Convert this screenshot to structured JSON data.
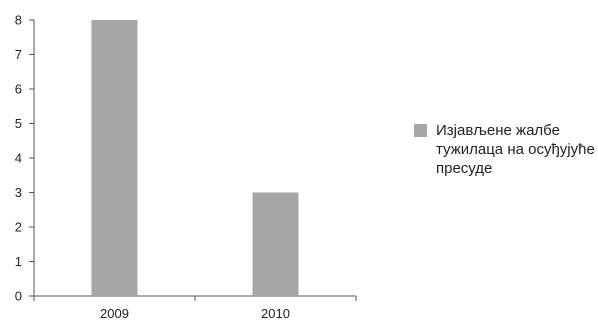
{
  "chart_data": {
    "type": "bar",
    "categories": [
      "2009",
      "2010"
    ],
    "series": [
      {
        "name": "Изјављене жалбе тужилаца на осуђујуће пресуде",
        "values": [
          8,
          3
        ],
        "color": "#a6a6a6"
      }
    ],
    "ylim": [
      0,
      8
    ],
    "yticks": [
      "0",
      "1",
      "2",
      "3",
      "4",
      "5",
      "6",
      "7",
      "8"
    ],
    "grid": false,
    "legend_position": "right",
    "axis_color": "#555555"
  }
}
